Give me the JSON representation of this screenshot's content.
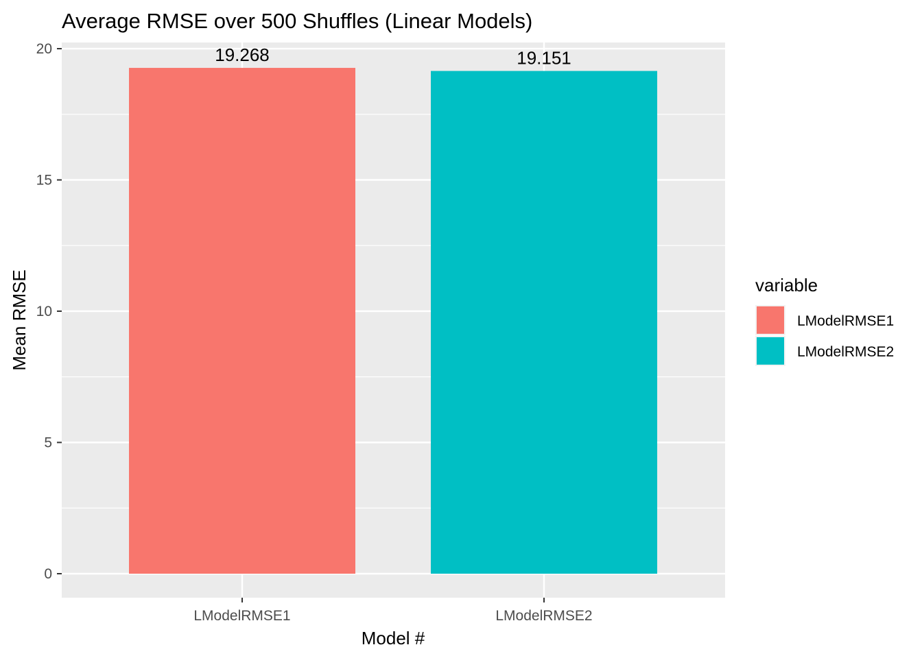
{
  "chart_data": {
    "type": "bar",
    "title": "Average RMSE over 500 Shuffles (Linear Models)",
    "xlabel": "Model #",
    "ylabel": "Mean RMSE",
    "categories": [
      "LModelRMSE1",
      "LModelRMSE2"
    ],
    "values": [
      19.268,
      19.151
    ],
    "data_labels": [
      "19.268",
      "19.151"
    ],
    "colors": [
      "#F8766D",
      "#00BFC4"
    ],
    "ylim": [
      0,
      20
    ],
    "yticks": [
      0,
      5,
      10,
      15,
      20
    ],
    "ytick_labels": [
      "0",
      "5",
      "10",
      "15",
      "20"
    ],
    "grid": true,
    "panel_background": "#EBEBEB",
    "legend": {
      "title": "variable",
      "position": "right",
      "entries": [
        "LModelRMSE1",
        "LModelRMSE2"
      ]
    }
  }
}
